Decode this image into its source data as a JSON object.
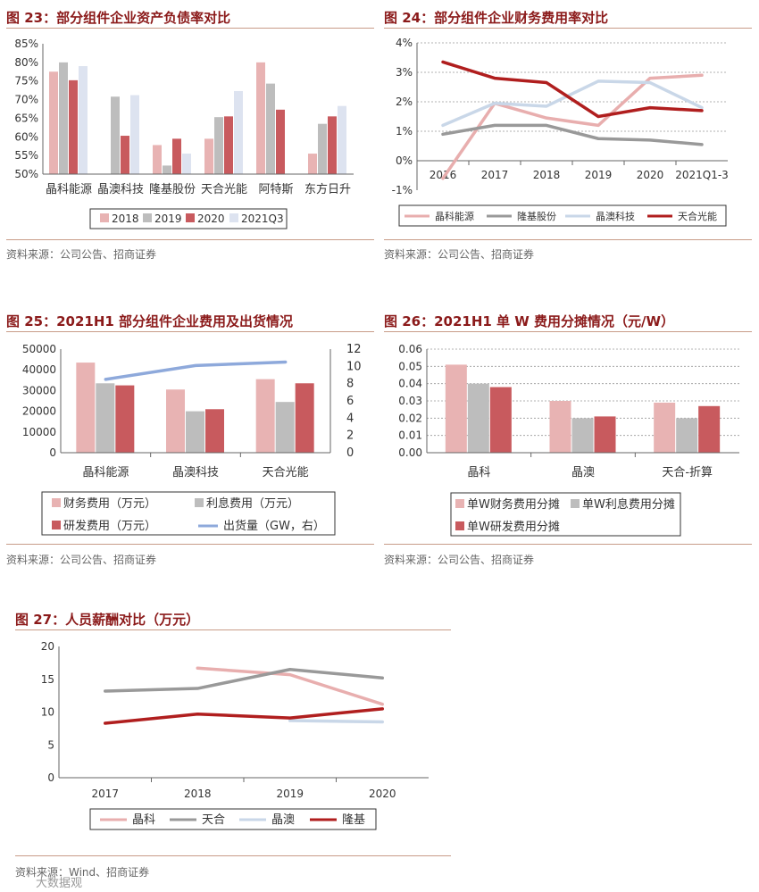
{
  "titles": {
    "fig23": "图 23：部分组件企业资产负债率对比",
    "fig24": "图 24：部分组件企业财务费用率对比",
    "fig25": "图 25：2021H1 部分组件企业费用及出货情况",
    "fig26": "图 26：2021H1 单 W 费用分摊情况（元/W）",
    "fig27": "图 27：人员薪酬对比（万元）"
  },
  "sources": {
    "fig23": "资料来源：公司公告、招商证券",
    "fig24": "资料来源：公司公告、招商证券",
    "fig25": "资料来源：公司公告、招商证券",
    "fig26": "资料来源：公司公告、招商证券",
    "fig27": "资料来源：Wind、招商证券"
  },
  "watermark": "大数据观",
  "chart_data": [
    {
      "id": "fig23",
      "type": "bar",
      "categories": [
        "晶科能源",
        "晶澳科技",
        "隆基股份",
        "天合光能",
        "阿特斯",
        "东方日升"
      ],
      "ylim": [
        50,
        85
      ],
      "yticks": [
        "50%",
        "55%",
        "60%",
        "65%",
        "70%",
        "75%",
        "80%",
        "85%"
      ],
      "series": [
        {
          "name": "2018",
          "color": "#e8b3b3",
          "values": [
            77.5,
            null,
            57.8,
            59.5,
            80.0,
            55.5
          ]
        },
        {
          "name": "2019",
          "color": "#bdbdbd",
          "values": [
            80.0,
            70.8,
            52.3,
            65.3,
            74.3,
            63.5
          ]
        },
        {
          "name": "2020",
          "color": "#c85a5e",
          "values": [
            75.2,
            60.3,
            59.5,
            65.5,
            67.3,
            65.5
          ]
        },
        {
          "name": "2021Q3",
          "color": "#dde3f0",
          "values": [
            79.0,
            71.2,
            55.5,
            72.3,
            null,
            68.3
          ]
        }
      ]
    },
    {
      "id": "fig24",
      "type": "line",
      "categories": [
        "2016",
        "2017",
        "2018",
        "2019",
        "2020",
        "2021Q1-3"
      ],
      "ylim": [
        -1,
        4
      ],
      "yticks": [
        "-1%",
        "0%",
        "1%",
        "2%",
        "3%",
        "4%"
      ],
      "series": [
        {
          "name": "晶科能源",
          "color": "#e8aeae",
          "values": [
            -0.6,
            1.95,
            1.45,
            1.2,
            2.8,
            2.9
          ]
        },
        {
          "name": "隆基股份",
          "color": "#999999",
          "values": [
            0.9,
            1.2,
            1.2,
            0.75,
            0.7,
            0.55
          ]
        },
        {
          "name": "晶澳科技",
          "color": "#c9d7e8",
          "values": [
            1.2,
            1.95,
            1.85,
            2.7,
            2.65,
            1.8
          ]
        },
        {
          "name": "天合光能",
          "color": "#b01e1e",
          "values": [
            3.35,
            2.8,
            2.65,
            1.5,
            1.8,
            1.7
          ]
        }
      ]
    },
    {
      "id": "fig25",
      "type": "bar",
      "categories": [
        "晶科能源",
        "晶澳科技",
        "天合光能"
      ],
      "ylim": [
        0,
        50000
      ],
      "yticks": [
        "0",
        "10000",
        "20000",
        "30000",
        "40000",
        "50000"
      ],
      "y2lim": [
        0,
        12
      ],
      "y2ticks": [
        "0",
        "2",
        "4",
        "6",
        "8",
        "10",
        "12"
      ],
      "series": [
        {
          "name": "财务费用（万元）",
          "color": "#e8b3b3",
          "values": [
            43500,
            30500,
            35500
          ]
        },
        {
          "name": "利息费用（万元）",
          "color": "#bdbdbd",
          "values": [
            33500,
            20000,
            24500
          ]
        },
        {
          "name": "研发费用（万元）",
          "color": "#c85a5e",
          "values": [
            32500,
            21000,
            33500
          ]
        },
        {
          "name": "出货量（GW，右）",
          "color": "#8ea9db",
          "type": "line",
          "axis": "right",
          "values": [
            8.5,
            10.1,
            10.5
          ]
        }
      ]
    },
    {
      "id": "fig26",
      "type": "bar",
      "categories": [
        "晶科",
        "晶澳",
        "天合-折算"
      ],
      "ylim": [
        0,
        0.06
      ],
      "yticks": [
        "0.00",
        "0.01",
        "0.02",
        "0.03",
        "0.04",
        "0.05",
        "0.06"
      ],
      "series": [
        {
          "name": "单W财务费用分摊",
          "color": "#e8b3b3",
          "values": [
            0.051,
            0.03,
            0.029
          ]
        },
        {
          "name": "单W利息费用分摊",
          "color": "#bdbdbd",
          "values": [
            0.04,
            0.02,
            0.02
          ]
        },
        {
          "name": "单W研发费用分摊",
          "color": "#c85a5e",
          "values": [
            0.038,
            0.021,
            0.027
          ]
        }
      ]
    },
    {
      "id": "fig27",
      "type": "line",
      "categories": [
        "2017",
        "2018",
        "2019",
        "2020"
      ],
      "ylim": [
        0,
        20
      ],
      "yticks": [
        "0",
        "5",
        "10",
        "15",
        "20"
      ],
      "series": [
        {
          "name": "晶科",
          "color": "#e8aeae",
          "values": [
            null,
            16.7,
            15.7,
            11.2
          ]
        },
        {
          "name": "天合",
          "color": "#999999",
          "values": [
            13.2,
            13.6,
            16.5,
            15.2
          ]
        },
        {
          "name": "晶澳",
          "color": "#c9d7e8",
          "values": [
            null,
            null,
            8.7,
            8.5
          ]
        },
        {
          "name": "隆基",
          "color": "#b01e1e",
          "values": [
            8.3,
            9.7,
            9.1,
            10.5
          ]
        }
      ]
    }
  ]
}
